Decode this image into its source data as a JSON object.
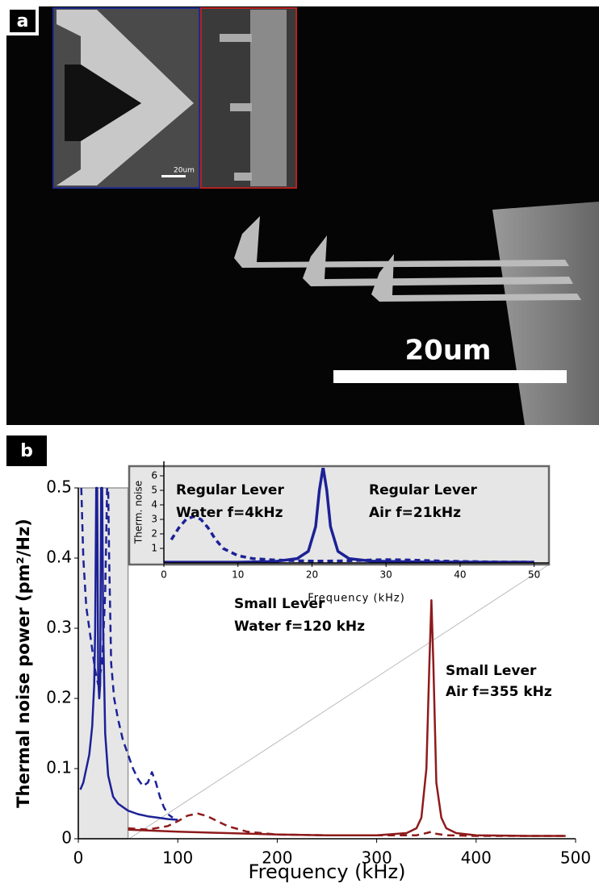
{
  "panels": {
    "a": {
      "label": "a",
      "scale_bar": "20um",
      "inset_scale_bar": "20um"
    },
    "b": {
      "label": "b"
    }
  },
  "chart_data": [
    {
      "type": "line",
      "xlabel": "Frequency (kHz)",
      "ylabel": "Thermal noise power (pm²/Hz)",
      "xlim": [
        0,
        500
      ],
      "xticks": [
        0,
        100,
        200,
        300,
        400,
        500
      ],
      "ylim": [
        0,
        0.5
      ],
      "yticks": [
        0,
        0.1,
        0.2,
        0.3,
        0.4,
        0.5
      ],
      "highlight_xlim": [
        0,
        50
      ],
      "annotations": [
        "Small Lever",
        "Air f=355 kHz",
        "Small Lever",
        "Water f=120 kHz"
      ],
      "series": [
        {
          "color": "#1c2196",
          "dashed": false,
          "x": [
            2,
            5,
            8,
            11,
            14,
            16,
            17,
            18,
            19,
            20,
            21,
            22,
            23,
            24,
            25,
            27,
            30,
            35,
            40,
            50,
            60,
            70,
            80,
            90,
            100
          ],
          "values": [
            0.07,
            0.08,
            0.1,
            0.12,
            0.16,
            0.22,
            0.3,
            0.5,
            0.5,
            0.23,
            0.2,
            0.22,
            0.5,
            0.5,
            0.3,
            0.15,
            0.09,
            0.06,
            0.05,
            0.04,
            0.035,
            0.032,
            0.03,
            0.028,
            0.027
          ]
        },
        {
          "color": "#1c2196",
          "dashed": true,
          "x": [
            3,
            5,
            8,
            11,
            14,
            17,
            20,
            24,
            27,
            29,
            30,
            31,
            33,
            36,
            40,
            45,
            50,
            55,
            60,
            65,
            70,
            74,
            78,
            82,
            86,
            90,
            95
          ],
          "values": [
            0.5,
            0.4,
            0.33,
            0.3,
            0.27,
            0.24,
            0.22,
            0.25,
            0.35,
            0.5,
            0.5,
            0.4,
            0.25,
            0.2,
            0.17,
            0.14,
            0.12,
            0.1,
            0.085,
            0.075,
            0.08,
            0.095,
            0.08,
            0.06,
            0.045,
            0.035,
            0.03
          ]
        },
        {
          "color": "#8e1b1b",
          "dashed": true,
          "x": [
            50,
            70,
            90,
            100,
            110,
            120,
            130,
            140,
            150,
            170,
            200,
            250,
            300,
            340,
            350,
            355,
            360,
            370,
            400,
            450,
            490
          ],
          "values": [
            0.015,
            0.013,
            0.018,
            0.025,
            0.033,
            0.036,
            0.032,
            0.025,
            0.018,
            0.01,
            0.006,
            0.005,
            0.005,
            0.005,
            0.008,
            0.01,
            0.007,
            0.005,
            0.004,
            0.004,
            0.004
          ]
        },
        {
          "color": "#8e1b1b",
          "dashed": false,
          "x": [
            50,
            100,
            150,
            200,
            250,
            300,
            330,
            340,
            345,
            350,
            353,
            355,
            357,
            360,
            365,
            370,
            380,
            400,
            450,
            490
          ],
          "values": [
            0.013,
            0.01,
            0.008,
            0.006,
            0.005,
            0.005,
            0.008,
            0.015,
            0.03,
            0.1,
            0.25,
            0.34,
            0.25,
            0.08,
            0.03,
            0.015,
            0.008,
            0.005,
            0.004,
            0.004
          ]
        }
      ]
    },
    {
      "type": "line",
      "xlabel": "Frequency (kHz)",
      "ylabel": "Therm. noise",
      "xlim": [
        0,
        52
      ],
      "xticks": [
        0,
        10,
        20,
        30,
        40,
        50
      ],
      "ylim": [
        0,
        7
      ],
      "yticks": [
        1,
        2,
        3,
        4,
        5,
        6
      ],
      "annotations": [
        "Regular Lever",
        "Water f=4kHz",
        "Regular Lever",
        "Air f=21kHz"
      ],
      "series": [
        {
          "color": "#1c2196",
          "dashed": true,
          "x": [
            1,
            2,
            3,
            4,
            5,
            6,
            7,
            8,
            10,
            12,
            15,
            18,
            20,
            22,
            25,
            28,
            30,
            33,
            36,
            40,
            45,
            50
          ],
          "values": [
            1.6,
            2.4,
            3.0,
            3.2,
            3.0,
            2.4,
            1.6,
            1.0,
            0.5,
            0.3,
            0.2,
            0.15,
            0.12,
            0.12,
            0.15,
            0.2,
            0.22,
            0.2,
            0.15,
            0.1,
            0.06,
            0.05
          ]
        },
        {
          "color": "#1c2196",
          "dashed": false,
          "x": [
            0,
            10,
            15,
            18,
            19.5,
            20.5,
            21,
            21.5,
            22,
            22.5,
            23.5,
            25,
            28,
            35,
            50
          ],
          "values": [
            0.05,
            0.05,
            0.1,
            0.3,
            0.8,
            2.5,
            5,
            6.6,
            5,
            2.5,
            0.8,
            0.3,
            0.12,
            0.06,
            0.05
          ]
        }
      ]
    }
  ]
}
